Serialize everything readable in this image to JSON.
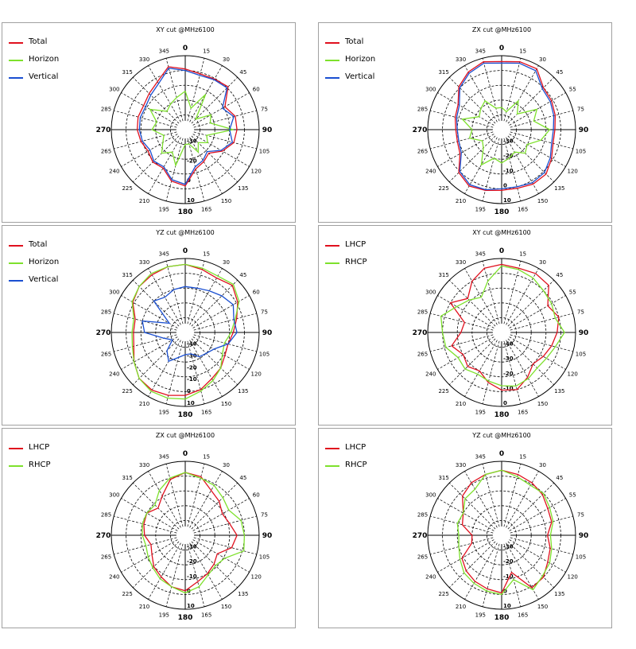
{
  "colors": {
    "total": "#e0101e",
    "horizon": "#7ee12c",
    "vertical": "#1a4fd1",
    "lhcp": "#e0101e",
    "rhcp": "#7ee12c"
  },
  "chart_data": [
    {
      "type": "polar-line",
      "title": "XY cut @MHz6100",
      "angle_labels": [
        "0",
        "15",
        "30",
        "45",
        "60",
        "75",
        "90",
        "105",
        "120",
        "135",
        "150",
        "165",
        "180",
        "195",
        "210",
        "225",
        "240",
        "265",
        "270",
        "285",
        "300",
        "315",
        "330",
        "345"
      ],
      "radial_labels": [
        "-30",
        "-20",
        "0",
        "10"
      ],
      "legend_position": "top-left",
      "series": [
        {
          "name": "Total",
          "color": "#e0101e",
          "r": [
            0.82,
            0.78,
            0.79,
            0.82,
            0.62,
            0.7,
            0.7,
            0.68,
            0.58,
            0.45,
            0.5,
            0.55,
            0.76,
            0.72,
            0.6,
            0.62,
            0.58,
            0.62,
            0.65,
            0.66,
            0.65,
            0.69,
            0.75,
            0.88
          ]
        },
        {
          "name": "Horizon",
          "color": "#7ee12c",
          "r": [
            0.52,
            0.3,
            0.55,
            0.2,
            0.4,
            0.35,
            0.65,
            0.3,
            0.35,
            0.25,
            0.35,
            0.2,
            0.2,
            0.5,
            0.35,
            0.45,
            0.35,
            0.3,
            0.45,
            0.4,
            0.55,
            0.35,
            0.4,
            0.45
          ]
        },
        {
          "name": "Vertical",
          "color": "#1a4fd1",
          "r": [
            0.8,
            0.76,
            0.78,
            0.8,
            0.58,
            0.68,
            0.6,
            0.66,
            0.56,
            0.42,
            0.48,
            0.52,
            0.74,
            0.7,
            0.58,
            0.6,
            0.55,
            0.6,
            0.62,
            0.63,
            0.62,
            0.66,
            0.72,
            0.86
          ]
        }
      ]
    },
    {
      "type": "polar-line",
      "title": "ZX cut @MHz6100",
      "angle_labels": [
        "0",
        "15",
        "30",
        "45",
        "55",
        "75",
        "90",
        "105",
        "120",
        "135",
        "150",
        "165",
        "180",
        "195",
        "210",
        "225",
        "240",
        "265",
        "270",
        "285",
        "300",
        "315",
        "330",
        "345"
      ],
      "radial_labels": [
        "-30",
        "-20",
        "-10",
        "0",
        "10"
      ],
      "legend_position": "top-left",
      "series": [
        {
          "name": "Total",
          "color": "#e0101e",
          "r": [
            0.92,
            0.95,
            0.95,
            0.8,
            0.78,
            0.75,
            0.72,
            0.72,
            0.78,
            0.85,
            0.85,
            0.82,
            0.82,
            0.85,
            0.88,
            0.82,
            0.65,
            0.62,
            0.62,
            0.65,
            0.68,
            0.82,
            0.9,
            0.95
          ]
        },
        {
          "name": "Horizon",
          "color": "#7ee12c",
          "r": [
            0.3,
            0.25,
            0.45,
            0.3,
            0.55,
            0.45,
            0.65,
            0.55,
            0.4,
            0.45,
            0.35,
            0.4,
            0.45,
            0.4,
            0.55,
            0.35,
            0.3,
            0.45,
            0.4,
            0.55,
            0.35,
            0.4,
            0.45,
            0.3
          ]
        },
        {
          "name": "Vertical",
          "color": "#1a4fd1",
          "r": [
            0.9,
            0.93,
            0.92,
            0.78,
            0.76,
            0.73,
            0.7,
            0.7,
            0.76,
            0.82,
            0.83,
            0.8,
            0.8,
            0.84,
            0.86,
            0.8,
            0.63,
            0.6,
            0.6,
            0.63,
            0.66,
            0.8,
            0.88,
            0.93
          ]
        }
      ]
    },
    {
      "type": "polar-line",
      "title": "YZ cut @MHz6100",
      "angle_labels": [
        "0",
        "15",
        "30",
        "45",
        "60",
        "75",
        "90",
        "105",
        "120",
        "135",
        "150",
        "165",
        "180",
        "195",
        "210",
        "225",
        "240",
        "265",
        "270",
        "285",
        "300",
        "315",
        "330",
        "345"
      ],
      "radial_labels": [
        "-40",
        "-30",
        "-20",
        "-10",
        "0",
        "10"
      ],
      "legend_position": "top-left",
      "series": [
        {
          "name": "Total",
          "color": "#e0101e",
          "r": [
            0.92,
            0.88,
            0.85,
            0.9,
            0.82,
            0.72,
            0.65,
            0.6,
            0.62,
            0.68,
            0.72,
            0.8,
            0.85,
            0.88,
            0.9,
            0.88,
            0.8,
            0.72,
            0.7,
            0.7,
            0.82,
            0.88,
            0.9,
            0.92
          ]
        },
        {
          "name": "Horizon",
          "color": "#7ee12c",
          "r": [
            0.92,
            0.9,
            0.88,
            0.92,
            0.84,
            0.7,
            0.62,
            0.55,
            0.58,
            0.68,
            0.75,
            0.82,
            0.9,
            0.92,
            0.92,
            0.88,
            0.8,
            0.74,
            0.72,
            0.72,
            0.83,
            0.88,
            0.92,
            0.92
          ]
        },
        {
          "name": "Vertical",
          "color": "#1a4fd1",
          "r": [
            0.62,
            0.62,
            0.65,
            0.7,
            0.75,
            0.68,
            0.7,
            0.6,
            0.45,
            0.4,
            0.38,
            0.3,
            0.3,
            0.35,
            0.45,
            0.35,
            0.2,
            0.3,
            0.55,
            0.6,
            0.25,
            0.6,
            0.55,
            0.6
          ]
        }
      ]
    },
    {
      "type": "polar-line",
      "title": "XY cut @MHz6100",
      "angle_labels": [
        "0",
        "15",
        "30",
        "45",
        "55",
        "75",
        "90",
        "105",
        "120",
        "135",
        "150",
        "165",
        "180",
        "195",
        "210",
        "225",
        "240",
        "265",
        "270",
        "285",
        "300",
        "315",
        "330",
        "345"
      ],
      "radial_labels": [
        "-40",
        "-30",
        "-20",
        "-10",
        "0"
      ],
      "legend_position": "top-left",
      "series": [
        {
          "name": "LHCP",
          "color": "#e0101e",
          "r": [
            0.92,
            0.9,
            0.92,
            0.9,
            0.72,
            0.8,
            0.75,
            0.7,
            0.65,
            0.6,
            0.7,
            0.8,
            0.78,
            0.7,
            0.6,
            0.65,
            0.6,
            0.7,
            0.55,
            0.52,
            0.8,
            0.65,
            0.8,
            0.9
          ]
        },
        {
          "name": "RHCP",
          "color": "#7ee12c",
          "r": [
            0.9,
            0.88,
            0.85,
            0.8,
            0.78,
            0.75,
            0.85,
            0.75,
            0.7,
            0.68,
            0.72,
            0.75,
            0.72,
            0.68,
            0.65,
            0.7,
            0.68,
            0.78,
            0.8,
            0.85,
            0.7,
            0.62,
            0.55,
            0.72
          ]
        }
      ]
    },
    {
      "type": "polar-line",
      "title": "ZX cut @MHz6100",
      "angle_labels": [
        "0",
        "15",
        "30",
        "45",
        "60",
        "75",
        "90",
        "105",
        "120",
        "135",
        "150",
        "165",
        "180",
        "195",
        "210",
        "225",
        "240",
        "265",
        "270",
        "285",
        "300",
        "315",
        "330",
        "345"
      ],
      "radial_labels": [
        "-30",
        "-20",
        "-10",
        "0",
        "10"
      ],
      "legend_position": "top-left",
      "series": [
        {
          "name": "LHCP",
          "color": "#e0101e",
          "r": [
            0.85,
            0.82,
            0.7,
            0.65,
            0.58,
            0.62,
            0.7,
            0.65,
            0.5,
            0.55,
            0.6,
            0.65,
            0.75,
            0.72,
            0.65,
            0.6,
            0.52,
            0.48,
            0.55,
            0.58,
            0.6,
            0.52,
            0.62,
            0.78
          ]
        },
        {
          "name": "RHCP",
          "color": "#7ee12c",
          "r": [
            0.85,
            0.8,
            0.78,
            0.72,
            0.68,
            0.78,
            0.8,
            0.82,
            0.62,
            0.58,
            0.62,
            0.72,
            0.78,
            0.72,
            0.68,
            0.62,
            0.58,
            0.55,
            0.58,
            0.6,
            0.6,
            0.58,
            0.7,
            0.8
          ]
        }
      ]
    },
    {
      "type": "polar-line",
      "title": "YZ cut @MHz6100",
      "angle_labels": [
        "0",
        "15",
        "30",
        "45",
        "55",
        "75",
        "90",
        "105",
        "120",
        "135",
        "150",
        "165",
        "180",
        "195",
        "210",
        "225",
        "240",
        "265",
        "270",
        "285",
        "300",
        "315",
        "330",
        "345"
      ],
      "radial_labels": [
        "-30",
        "-20",
        "-10",
        "0",
        "10"
      ],
      "legend_position": "top-left",
      "series": [
        {
          "name": "LHCP",
          "color": "#e0101e",
          "r": [
            0.88,
            0.85,
            0.82,
            0.78,
            0.72,
            0.7,
            0.62,
            0.68,
            0.72,
            0.8,
            0.82,
            0.52,
            0.78,
            0.75,
            0.72,
            0.68,
            0.62,
            0.42,
            0.4,
            0.55,
            0.6,
            0.75,
            0.82,
            0.85
          ]
        },
        {
          "name": "RHCP",
          "color": "#7ee12c",
          "r": [
            0.88,
            0.82,
            0.78,
            0.8,
            0.75,
            0.72,
            0.66,
            0.7,
            0.75,
            0.78,
            0.85,
            0.62,
            0.8,
            0.78,
            0.75,
            0.72,
            0.65,
            0.6,
            0.58,
            0.62,
            0.6,
            0.7,
            0.72,
            0.85
          ]
        }
      ]
    }
  ]
}
